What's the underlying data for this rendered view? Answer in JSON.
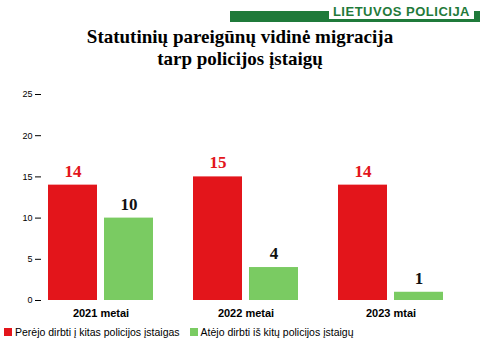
{
  "chart_data": {
    "type": "bar",
    "title": "Statutinių pareigūnų vidinė migracija tarp policijos įstaigų",
    "annotations": [
      "LIETUVOS POLICIJA"
    ],
    "categories": [
      "2021 metai",
      "2022 metai",
      "2023 mtai"
    ],
    "series": [
      {
        "name": "Perėjo dirbti į kitas policijos įstaigas",
        "color": "#e3151b",
        "values": [
          14,
          15,
          14
        ]
      },
      {
        "name": "Atėjo dirbti iš kitų policijos įstaigų",
        "color": "#7acb62",
        "values": [
          10,
          4,
          1
        ]
      }
    ],
    "ylim": [
      0,
      25
    ],
    "yticks": [
      0,
      5,
      10,
      15,
      20,
      25
    ],
    "grid": false,
    "legend": "bottom",
    "data_labels": true
  }
}
